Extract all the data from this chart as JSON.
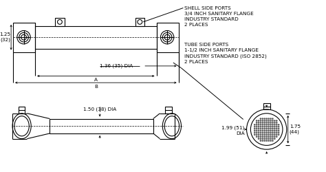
{
  "bg_color": "#ffffff",
  "line_color": "#000000",
  "fig_width": 4.74,
  "fig_height": 2.5,
  "dpi": 100,
  "annotations": {
    "shell_side_ports": "SHELL SIDE PORTS\n3/4 INCH SANITARY FLANGE\nINDUSTRY STANDARD\n2 PLACES",
    "tube_side_ports": "TUBE SIDE PORTS\n1-1/2 INCH SANITARY FLANGE\nINDUSTRY STANDARD (ISO 2852)\n2 PLACES",
    "dim_136_35": "1.36 (35) DIA",
    "dim_125_32": "1.25\n(32)",
    "dim_A": "A",
    "dim_B": "B",
    "dim_150_38": "1.50 (38) DIA",
    "dim_199_51": "1.99 (51)\nDIA",
    "dim_175_44": "1.75\n(44)"
  },
  "font_size": 5.2
}
